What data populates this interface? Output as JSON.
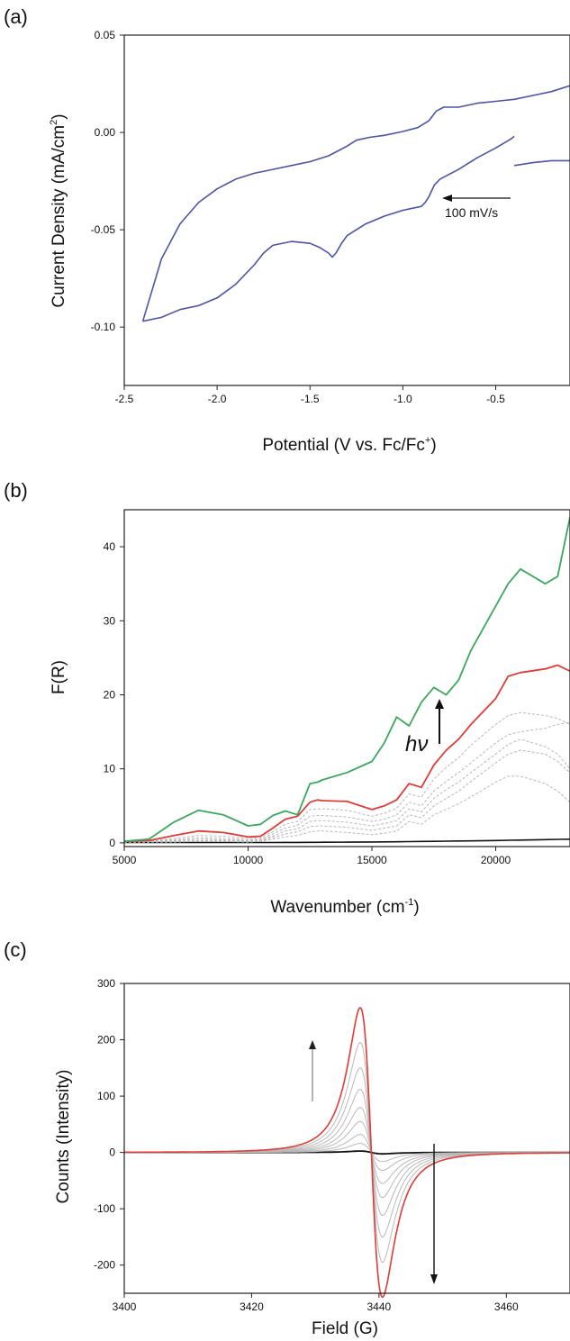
{
  "figure": {
    "panels": [
      {
        "label": "(a)"
      },
      {
        "label": "(b)"
      },
      {
        "label": "(c)"
      }
    ]
  },
  "chart_data": [
    {
      "type": "line",
      "panel": "(a)",
      "title": "",
      "xlabel": "Potential (V vs. Fc/Fc",
      "xlabel_sup": "+",
      "xlabel_end": ")",
      "ylabel": "Current Density (mA/cm",
      "ylabel_sup": "2",
      "ylabel_end": ")",
      "xlim": [
        -2.5,
        -0.1
      ],
      "ylim": [
        -0.13,
        0.05
      ],
      "xticks": [
        -2.5,
        -2.0,
        -1.5,
        -1.0,
        -0.5
      ],
      "xtick_labels": [
        "-2.5",
        "-2.0",
        "-1.5",
        "-1.0",
        "-0.5"
      ],
      "yticks": [
        0.05,
        0.0,
        -0.05,
        -0.1
      ],
      "ytick_labels": [
        "0.05",
        "0.00",
        "-0.05",
        "-0.10"
      ],
      "annotation": "100 mV/s",
      "colors": {
        "trace": "#4a54a8"
      },
      "series": [
        {
          "x": [
            -0.1,
            -0.2,
            -0.3,
            -0.4,
            -0.5,
            -0.6,
            -0.7,
            -0.78,
            -0.82,
            -0.86,
            -0.92,
            -1.0,
            -1.1,
            -1.18,
            -1.25,
            -1.3,
            -1.4,
            -1.5,
            -1.6,
            -1.7,
            -1.8,
            -1.9,
            -2.0,
            -2.1,
            -2.2,
            -2.3,
            -2.4
          ],
          "y": [
            0.024,
            0.021,
            0.019,
            0.017,
            0.016,
            0.015,
            0.013,
            0.013,
            0.011,
            0.006,
            0.0025,
            0.0005,
            -0.0015,
            -0.0025,
            -0.004,
            -0.007,
            -0.012,
            -0.015,
            -0.017,
            -0.019,
            -0.021,
            -0.024,
            -0.029,
            -0.036,
            -0.047,
            -0.065,
            -0.097
          ]
        },
        {
          "x": [
            -2.4,
            -2.3,
            -2.2,
            -2.1,
            -2.0,
            -1.9,
            -1.8,
            -1.75,
            -1.7,
            -1.6,
            -1.5,
            -1.45,
            -1.4,
            -1.38,
            -1.36,
            -1.33,
            -1.3,
            -1.25,
            -1.2,
            -1.1,
            -1.0,
            -0.95,
            -0.9,
            -0.88,
            -0.86,
            -0.83,
            -0.8,
            -0.7,
            -0.6,
            -0.5,
            -0.42,
            -0.4
          ],
          "y": [
            -0.097,
            -0.095,
            -0.091,
            -0.089,
            -0.085,
            -0.078,
            -0.068,
            -0.062,
            -0.058,
            -0.056,
            -0.057,
            -0.059,
            -0.062,
            -0.064,
            -0.062,
            -0.057,
            -0.053,
            -0.05,
            -0.047,
            -0.043,
            -0.04,
            -0.039,
            -0.038,
            -0.036,
            -0.033,
            -0.027,
            -0.024,
            -0.019,
            -0.013,
            -0.008,
            -0.0035,
            -0.002
          ]
        },
        {
          "x": [
            -0.4,
            -0.3,
            -0.2,
            -0.1
          ],
          "y": [
            -0.017,
            -0.0155,
            -0.0145,
            -0.0145
          ]
        }
      ]
    },
    {
      "type": "line",
      "panel": "(b)",
      "title": "",
      "xlabel": "Wavenumber (cm",
      "xlabel_sup": "-1",
      "xlabel_end": ")",
      "ylabel": "F(R)",
      "xlim": [
        5000,
        23000
      ],
      "ylim": [
        -0.5,
        45
      ],
      "xticks": [
        5000,
        10000,
        15000,
        20000
      ],
      "xtick_labels": [
        "5000",
        "10000",
        "15000",
        "20000"
      ],
      "yticks": [
        0,
        10,
        20,
        30,
        40
      ],
      "ytick_labels": [
        "0",
        "10",
        "20",
        "30",
        "40"
      ],
      "annotation": "hν",
      "colors": {
        "green": "#3aa85c",
        "red": "#e23a35",
        "gray": "#b8b8b8",
        "black": "#111111"
      },
      "x": [
        5000,
        6000,
        7000,
        8000,
        9000,
        10000,
        10500,
        11000,
        11500,
        12000,
        12500,
        12800,
        13000,
        14000,
        15000,
        15500,
        16000,
        16500,
        17000,
        17500,
        18000,
        18500,
        19000,
        20000,
        20500,
        21000,
        22000,
        22500,
        23000
      ],
      "series": [
        {
          "name": "",
          "color": "green",
          "width": 1.8,
          "values": [
            0.2,
            0.5,
            2.8,
            4.4,
            3.8,
            2.3,
            2.5,
            3.7,
            4.3,
            3.8,
            8.0,
            8.2,
            8.5,
            9.5,
            11.0,
            13.5,
            17.0,
            15.8,
            19.0,
            21.0,
            20.0,
            22.0,
            26.0,
            32.0,
            35.0,
            37.0,
            35.0,
            36.0,
            44.0
          ]
        },
        {
          "name": "",
          "color": "red",
          "width": 1.8,
          "values": [
            0.2,
            0.3,
            1.0,
            1.6,
            1.4,
            0.8,
            0.9,
            2.0,
            3.2,
            3.6,
            5.5,
            5.8,
            5.7,
            5.6,
            4.5,
            5.0,
            5.8,
            8.0,
            7.5,
            10.5,
            12.5,
            14.0,
            16.0,
            19.5,
            22.5,
            23.0,
            23.5,
            24.0,
            23.2
          ]
        },
        {
          "name": "",
          "color": "gray",
          "width": 1,
          "dash": "3,2",
          "values": [
            0.1,
            0.2,
            0.6,
            1.0,
            0.9,
            0.6,
            0.7,
            1.5,
            2.5,
            2.9,
            4.5,
            4.6,
            4.6,
            4.4,
            3.6,
            4.0,
            4.7,
            6.6,
            6.2,
            8.6,
            10.2,
            11.5,
            13.2,
            16.0,
            17.2,
            17.6,
            17.2,
            16.8,
            16.0
          ]
        },
        {
          "name": "",
          "color": "gray",
          "width": 1,
          "dash": "3,2",
          "values": [
            0.1,
            0.2,
            0.4,
            0.7,
            0.6,
            0.4,
            0.5,
            1.2,
            2.0,
            2.4,
            3.6,
            3.7,
            3.7,
            3.5,
            2.9,
            3.2,
            3.8,
            5.5,
            5.0,
            7.0,
            8.3,
            9.5,
            10.8,
            13.5,
            14.6,
            15.0,
            15.5,
            16.0,
            16.3
          ]
        },
        {
          "name": "",
          "color": "gray",
          "width": 1,
          "dash": "3,2",
          "values": [
            0.1,
            0.1,
            0.3,
            0.5,
            0.4,
            0.3,
            0.4,
            0.9,
            1.6,
            1.9,
            2.9,
            3.0,
            3.0,
            2.8,
            2.3,
            2.6,
            3.0,
            4.6,
            4.2,
            6.0,
            7.2,
            8.2,
            9.5,
            12.0,
            13.3,
            14.0,
            13.0,
            12.0,
            10.0
          ]
        },
        {
          "name": "",
          "color": "gray",
          "width": 1,
          "dash": "3,2",
          "values": [
            0.1,
            0.1,
            0.2,
            0.3,
            0.3,
            0.2,
            0.3,
            0.7,
            1.2,
            1.5,
            2.2,
            2.3,
            2.3,
            2.1,
            1.7,
            2.0,
            2.3,
            3.8,
            3.4,
            5.0,
            6.0,
            7.0,
            8.3,
            10.8,
            12.0,
            12.5,
            12.0,
            11.0,
            9.5
          ]
        },
        {
          "name": "",
          "color": "gray",
          "width": 1,
          "dash": "3,2",
          "values": [
            0.1,
            0.1,
            0.1,
            0.2,
            0.2,
            0.1,
            0.2,
            0.5,
            0.8,
            1.0,
            1.5,
            1.6,
            1.6,
            1.4,
            1.1,
            1.3,
            1.6,
            2.9,
            2.5,
            3.8,
            4.5,
            5.3,
            6.2,
            8.2,
            9.0,
            9.0,
            8.0,
            7.0,
            5.5
          ]
        },
        {
          "name": "",
          "color": "black",
          "width": 1.6,
          "values": [
            0.05,
            0.05,
            0.05,
            0.05,
            0.05,
            0.05,
            0.05,
            0.05,
            0.06,
            0.06,
            0.07,
            0.07,
            0.08,
            0.1,
            0.12,
            0.13,
            0.15,
            0.17,
            0.19,
            0.21,
            0.23,
            0.25,
            0.27,
            0.32,
            0.35,
            0.38,
            0.44,
            0.47,
            0.5
          ]
        }
      ]
    },
    {
      "type": "line",
      "panel": "(c)",
      "title": "",
      "xlabel": "Field (G)",
      "ylabel": "Counts (Intensity)",
      "xlim": [
        3400,
        3470
      ],
      "ylim": [
        -250,
        300
      ],
      "xticks": [
        3400,
        3420,
        3440,
        3460
      ],
      "xtick_labels": [
        "3400",
        "3420",
        "3440",
        "3460"
      ],
      "yticks": [
        300,
        200,
        100,
        0,
        -100,
        -200
      ],
      "ytick_labels": [
        "300",
        "200",
        "100",
        "0",
        "-100",
        "-200"
      ],
      "colors": {
        "red": "#e23a35",
        "gray": "#b8b8b8",
        "black": "#111111"
      },
      "signal_center": 3438.8,
      "signal_halfwidth": 1.75,
      "series": [
        {
          "name": "",
          "color": "red",
          "width": 1.6,
          "peak": 257
        },
        {
          "name": "",
          "color": "gray",
          "width": 1,
          "peak": 195
        },
        {
          "name": "",
          "color": "gray",
          "width": 1,
          "peak": 150
        },
        {
          "name": "",
          "color": "gray",
          "width": 1,
          "peak": 112
        },
        {
          "name": "",
          "color": "gray",
          "width": 1,
          "peak": 80
        },
        {
          "name": "",
          "color": "gray",
          "width": 1,
          "peak": 55
        },
        {
          "name": "",
          "color": "gray",
          "width": 1,
          "peak": 32
        },
        {
          "name": "",
          "color": "gray",
          "width": 1,
          "peak": 16
        },
        {
          "name": "",
          "color": "black",
          "width": 1.8,
          "peak": 2.5
        }
      ]
    }
  ]
}
